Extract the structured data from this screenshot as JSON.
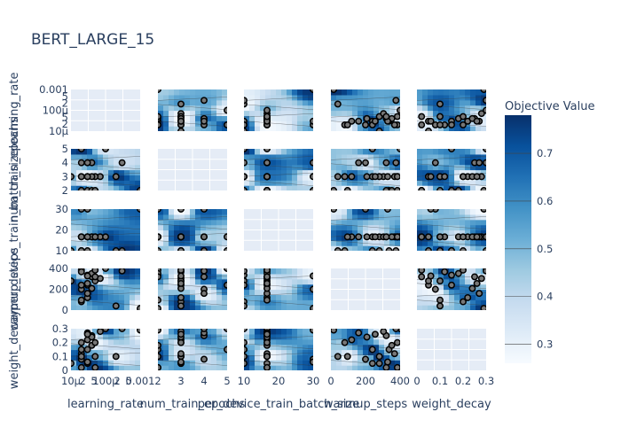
{
  "chart_data": {
    "type": "contour",
    "title": "BERT_LARGE_15",
    "params": [
      "learning_rate",
      "num_train_epochs",
      "per_device_train_batch_size",
      "warmup_steps",
      "weight_decay"
    ],
    "axis_labels": {
      "x": [
        "learning_rate",
        "num_train_epochs",
        "per_device_train_batch_size",
        "warmup_steps",
        "weight_decay"
      ],
      "y": [
        "learning_rate",
        "num_train_epochs",
        "per_device_train_batch_size",
        "warmup_steps",
        "weight_decay"
      ]
    },
    "ticks": {
      "learning_rate": [
        "10μ",
        "2",
        "5",
        "100μ",
        "2",
        "5",
        "0.001"
      ],
      "num_train_epochs": [
        "2",
        "3",
        "4",
        "5"
      ],
      "per_device_train_batch_size": [
        "10",
        "20",
        "30"
      ],
      "warmup_steps": [
        "0",
        "200",
        "400"
      ],
      "weight_decay": [
        "0",
        "0.1",
        "0.2",
        "0.3"
      ]
    },
    "y_ticks": {
      "learning_rate": [
        "0.001",
        "5",
        "2",
        "100μ",
        "5",
        "2",
        "10μ"
      ],
      "num_train_epochs": [
        "5",
        "4",
        "3",
        "2"
      ],
      "per_device_train_batch_size": [
        "30",
        "20",
        "10"
      ],
      "warmup_steps": [
        "400",
        "200",
        "0"
      ],
      "weight_decay": [
        "0.3",
        "0.2",
        "0.1",
        "0"
      ]
    },
    "colorbar": {
      "title": "Objective Value",
      "range": [
        0.26,
        0.78
      ],
      "ticks": [
        "0.7",
        "0.6",
        "0.5",
        "0.4",
        "0.3"
      ],
      "colorscale": "Blues"
    },
    "ranges": {
      "learning_rate": [
        1e-05,
        0.001
      ],
      "num_train_epochs": [
        2,
        5
      ],
      "per_device_train_batch_size": [
        8,
        32
      ],
      "warmup_steps": [
        0,
        500
      ],
      "weight_decay": [
        0,
        0.3
      ]
    },
    "trials": [
      {
        "learning_rate": 2e-05,
        "num_train_epochs": 2,
        "per_device_train_batch_size": 16,
        "warmup_steps": 480,
        "weight_decay": 0.02
      },
      {
        "learning_rate": 3e-05,
        "num_train_epochs": 3,
        "per_device_train_batch_size": 16,
        "warmup_steps": 300,
        "weight_decay": 0.05
      },
      {
        "learning_rate": 5e-05,
        "num_train_epochs": 3,
        "per_device_train_batch_size": 16,
        "warmup_steps": 350,
        "weight_decay": 0.1
      },
      {
        "learning_rate": 2e-05,
        "num_train_epochs": 3,
        "per_device_train_batch_size": 8,
        "warmup_steps": 100,
        "weight_decay": 0.2
      },
      {
        "learning_rate": 4e-05,
        "num_train_epochs": 4,
        "per_device_train_batch_size": 16,
        "warmup_steps": 400,
        "weight_decay": 0.25
      },
      {
        "learning_rate": 3e-05,
        "num_train_epochs": 2,
        "per_device_train_batch_size": 8,
        "warmup_steps": 420,
        "weight_decay": 0.15
      },
      {
        "learning_rate": 7e-05,
        "num_train_epochs": 3,
        "per_device_train_batch_size": 16,
        "warmup_steps": 380,
        "weight_decay": 0.28
      },
      {
        "learning_rate": 2e-05,
        "num_train_epochs": 4,
        "per_device_train_batch_size": 32,
        "warmup_steps": 250,
        "weight_decay": 0.08
      },
      {
        "learning_rate": 3e-05,
        "num_train_epochs": 3,
        "per_device_train_batch_size": 16,
        "warmup_steps": 150,
        "weight_decay": 0.22
      },
      {
        "learning_rate": 0.0001,
        "num_train_epochs": 5,
        "per_device_train_batch_size": 16,
        "warmup_steps": 500,
        "weight_decay": 0.3
      },
      {
        "learning_rate": 0.0002,
        "num_train_epochs": 3,
        "per_device_train_batch_size": 8,
        "warmup_steps": 50,
        "weight_decay": 0.1
      },
      {
        "learning_rate": 0.001,
        "num_train_epochs": 2,
        "per_device_train_batch_size": 32,
        "warmup_steps": 20,
        "weight_decay": 0.29
      },
      {
        "learning_rate": 2e-05,
        "num_train_epochs": 3,
        "per_device_train_batch_size": 16,
        "warmup_steps": 460,
        "weight_decay": 0.12
      },
      {
        "learning_rate": 4e-05,
        "num_train_epochs": 2,
        "per_device_train_batch_size": 16,
        "warmup_steps": 440,
        "weight_decay": 0.18
      },
      {
        "learning_rate": 1e-05,
        "num_train_epochs": 3,
        "per_device_train_batch_size": 8,
        "warmup_steps": 350,
        "weight_decay": 0.05
      },
      {
        "learning_rate": 3e-05,
        "num_train_epochs": 4,
        "per_device_train_batch_size": 16,
        "warmup_steps": 200,
        "weight_decay": 0.27
      },
      {
        "learning_rate": 5e-05,
        "num_train_epochs": 3,
        "per_device_train_batch_size": 16,
        "warmup_steps": 480,
        "weight_decay": 0.2
      },
      {
        "learning_rate": 2e-05,
        "num_train_epochs": 5,
        "per_device_train_batch_size": 8,
        "warmup_steps": 300,
        "weight_decay": 0.15
      },
      {
        "learning_rate": 3e-05,
        "num_train_epochs": 3,
        "per_device_train_batch_size": 32,
        "warmup_steps": 410,
        "weight_decay": 0.06
      },
      {
        "learning_rate": 4e-05,
        "num_train_epochs": 3,
        "per_device_train_batch_size": 16,
        "warmup_steps": 260,
        "weight_decay": 0.24
      },
      {
        "learning_rate": 2e-05,
        "num_train_epochs": 2,
        "per_device_train_batch_size": 16,
        "warmup_steps": 120,
        "weight_decay": 0.1
      },
      {
        "learning_rate": 0.0003,
        "num_train_epochs": 4,
        "per_device_train_batch_size": 8,
        "warmup_steps": 470,
        "weight_decay": 0.3
      },
      {
        "learning_rate": 3e-05,
        "num_train_epochs": 3,
        "per_device_train_batch_size": 16,
        "warmup_steps": 320,
        "weight_decay": 0.26
      },
      {
        "learning_rate": 5e-05,
        "num_train_epochs": 2,
        "per_device_train_batch_size": 16,
        "warmup_steps": 400,
        "weight_decay": 0.02
      }
    ]
  }
}
